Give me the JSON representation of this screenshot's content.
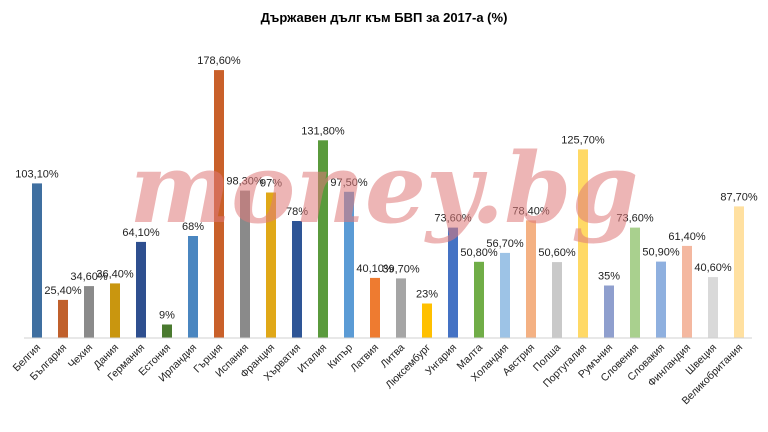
{
  "watermark": "money.bg",
  "chart_data": {
    "type": "bar",
    "title": "Държавен дълг към БВП за 2017-а (%)",
    "xlabel": "",
    "ylabel": "",
    "ylim": [
      0,
      180
    ],
    "grid": false,
    "legend": "none",
    "categories": [
      "Белгия",
      "България",
      "Чехия",
      "Дания",
      "Германия",
      "Естония",
      "Ирландия",
      "Гърция",
      "Испания",
      "Франция",
      "Хърватия",
      "Италия",
      "Кипър",
      "Латвия",
      "Литва",
      "Люксембург",
      "Унгария",
      "Малта",
      "Холандия",
      "Австрия",
      "Полша",
      "Португалия",
      "Румъния",
      "Словения",
      "Словакия",
      "Финландия",
      "Швеция",
      "Великобритания"
    ],
    "values": [
      103.1,
      25.4,
      34.6,
      36.4,
      64.1,
      9,
      68,
      178.6,
      98.3,
      97,
      78,
      131.8,
      97.5,
      40.1,
      39.7,
      23,
      73.6,
      50.8,
      56.7,
      78.4,
      50.6,
      125.7,
      35,
      73.6,
      50.9,
      61.4,
      40.6,
      87.7
    ],
    "value_labels": [
      "103,10%",
      "25,40%",
      "34,60%",
      "36,40%",
      "64,10%",
      "9%",
      "68%",
      "178,60%",
      "98,30%",
      "97%",
      "78%",
      "131,80%",
      "97,50%",
      "40,10%",
      "39,70%",
      "23%",
      "73,60%",
      "50,80%",
      "56,70%",
      "78,40%",
      "50,60%",
      "125,70%",
      "35%",
      "73,60%",
      "50,90%",
      "61,40%",
      "40,60%",
      "87,70%"
    ],
    "colors": [
      "#3f6fa0",
      "#c0602c",
      "#8a8a8a",
      "#c9960f",
      "#2e4f8f",
      "#4a7a2f",
      "#4a86c0",
      "#c9602a",
      "#8a8a8a",
      "#e0a818",
      "#2e5596",
      "#5a9a3c",
      "#5b9bd5",
      "#ee7b30",
      "#a5a5a5",
      "#ffc000",
      "#4472c4",
      "#70ad47",
      "#9dc3e6",
      "#f4b183",
      "#c9c9c9",
      "#ffd966",
      "#8f9fce",
      "#a9d08e",
      "#8fb0df",
      "#f4b8a0",
      "#d9d9d9",
      "#ffe0a0"
    ]
  }
}
